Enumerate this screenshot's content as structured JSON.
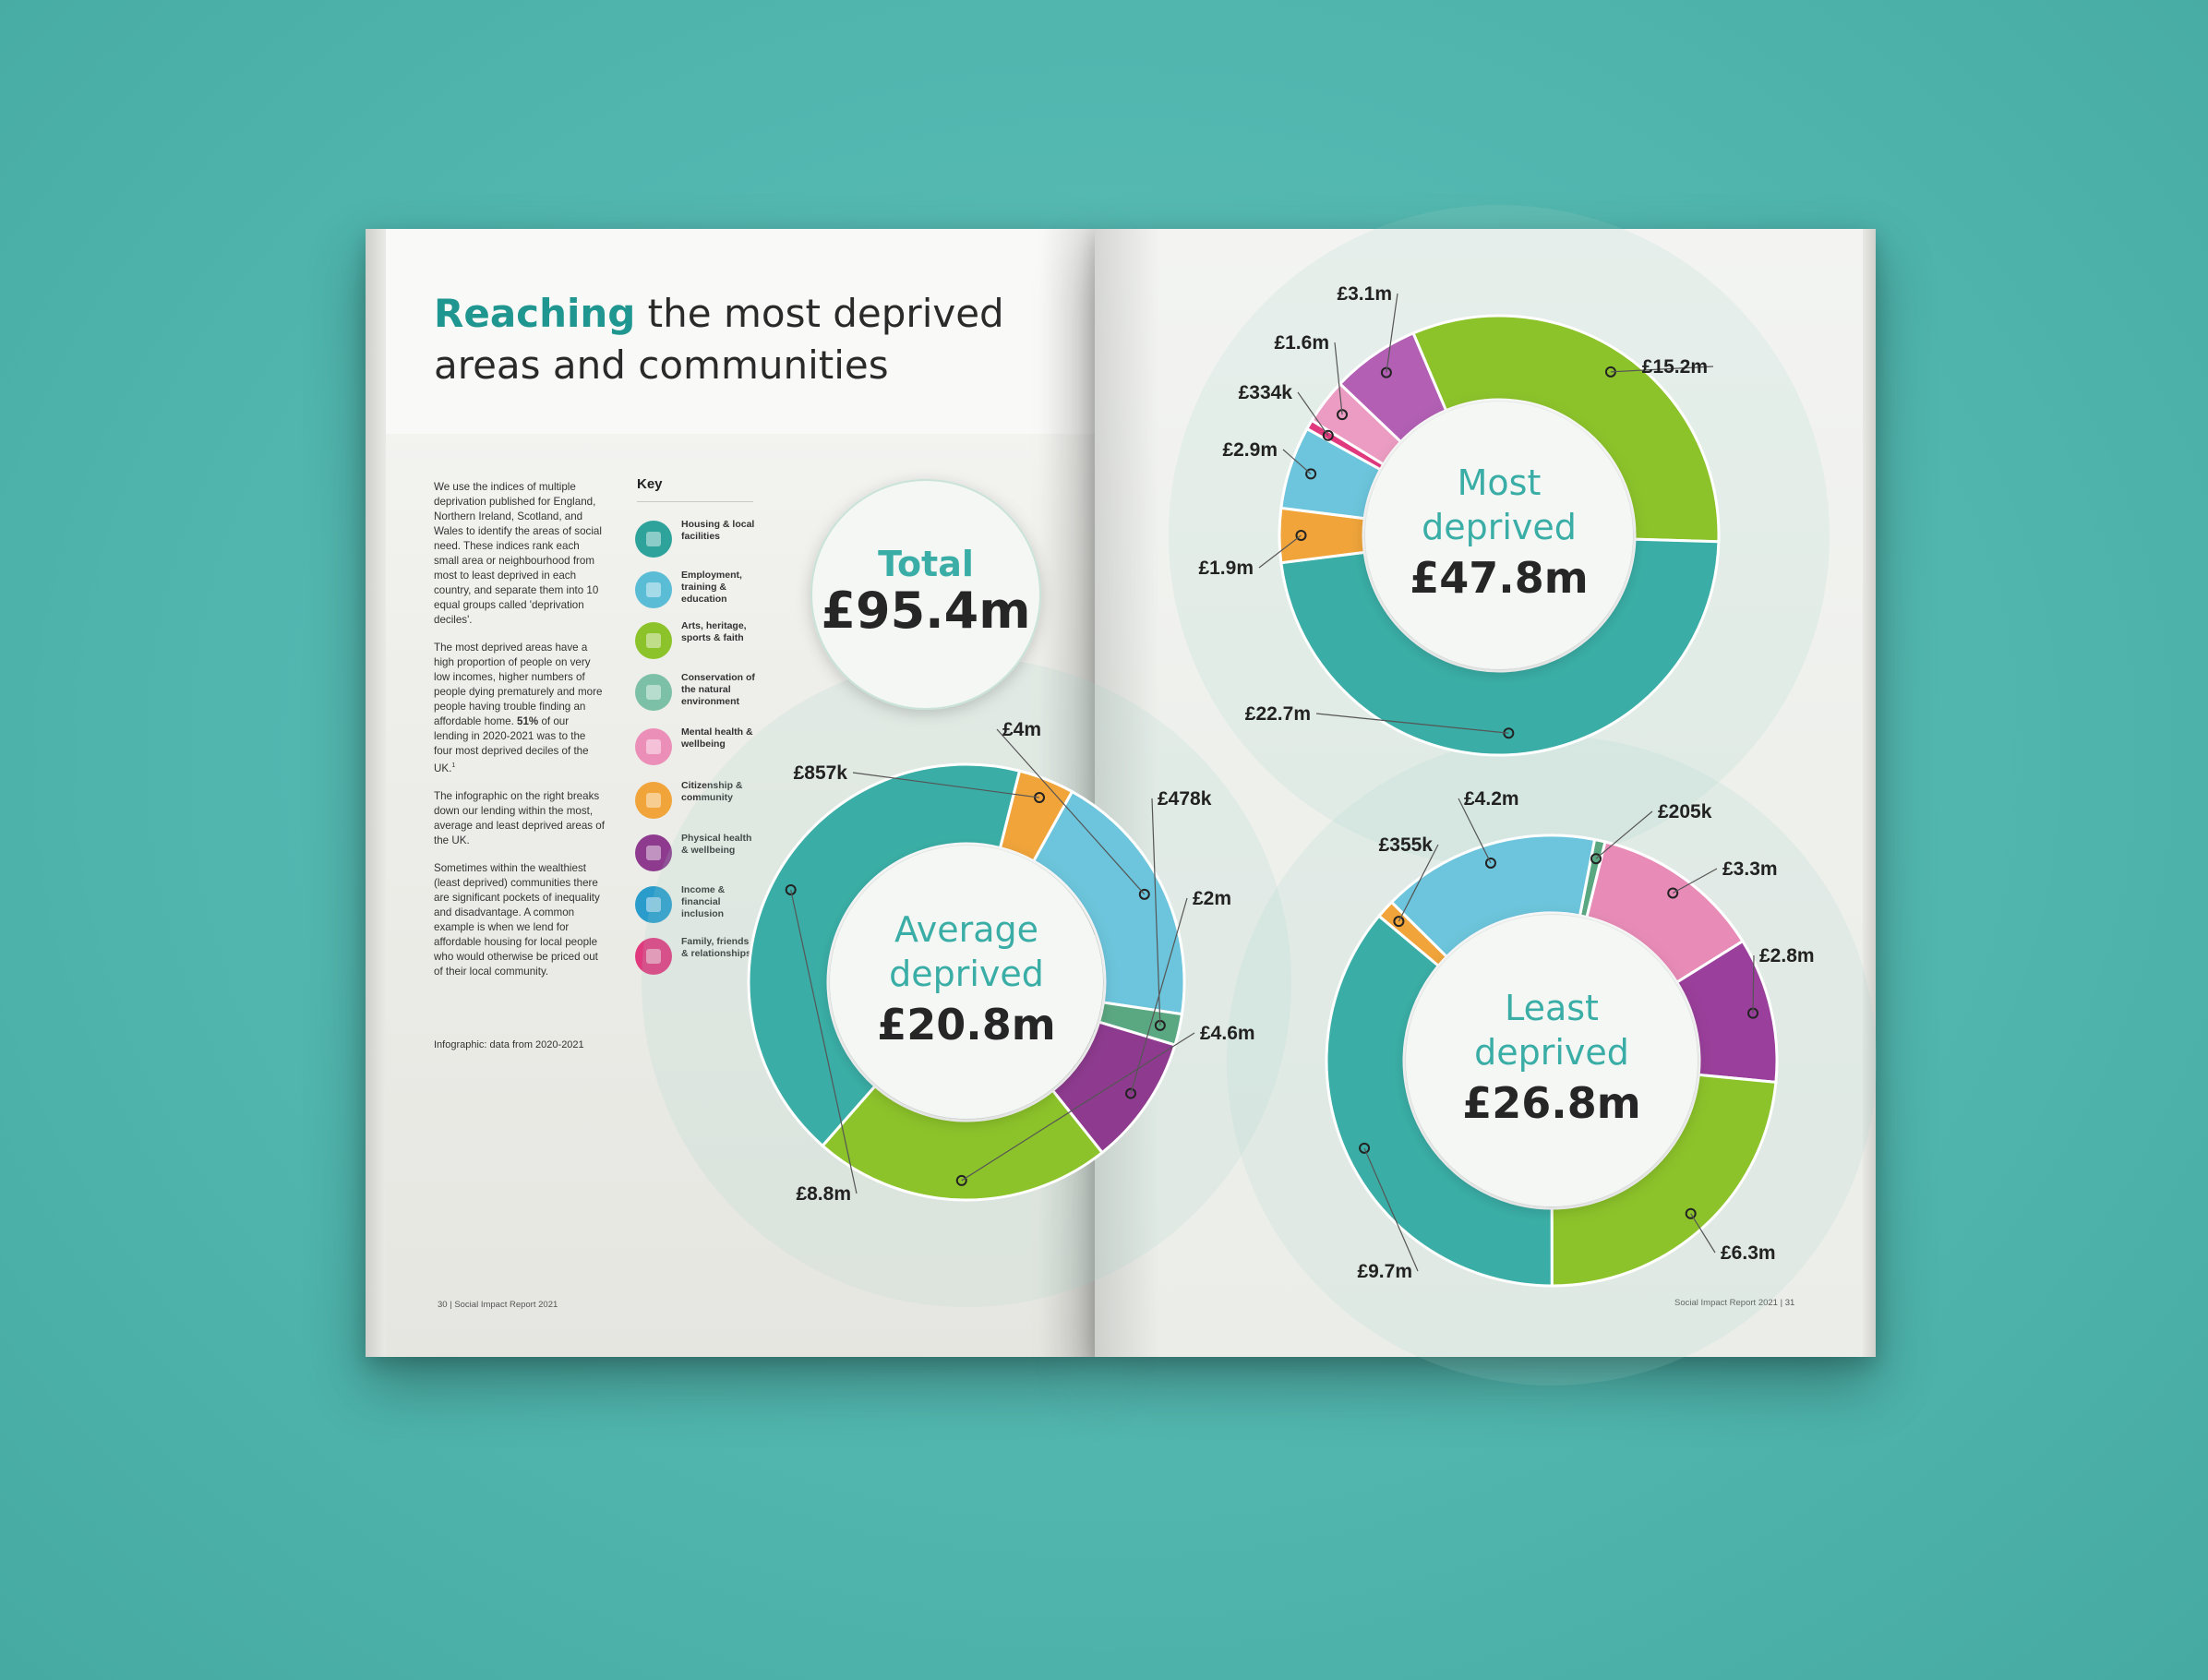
{
  "title": {
    "highlight": "Reaching",
    "rest_line1": " the most deprived",
    "line2": "areas and communities"
  },
  "body": {
    "p1": "We use the indices of multiple deprivation published for England, Northern Ireland, Scotland, and Wales to identify the areas of social need. These indices rank each small area or neighbourhood from most to least deprived in each country, and separate them into 10 equal groups called 'deprivation deciles'.",
    "p2_start": "The most deprived areas have a high proportion of people on very low incomes, higher numbers of people dying prematurely and more people having trouble finding an affordable home. ",
    "p2_bold": "51%",
    "p2_end": " of our lending in 2020-2021 was to the four most deprived deciles of the UK.",
    "p2_sup": "1",
    "p3": "The infographic on the right breaks down our lending within the most, average and least deprived areas of the UK.",
    "p4": "Sometimes within the wealthiest (least deprived) communities there are significant pockets of inequality and disadvantage. A common example is when we lend for affordable housing for local people who would otherwise be priced out of their local community.",
    "footnote": "Infographic: data from 2020-2021"
  },
  "folio": {
    "left": "30 | Social Impact Report 2021",
    "right": "Social Impact Report 2021 | 31"
  },
  "key": {
    "title": "Key",
    "items": [
      {
        "label": "Housing & local facilities",
        "color": "#2ea39b",
        "icon": "house-icon"
      },
      {
        "label": "Employment, training & education",
        "color": "#5bbcd6",
        "icon": "book-icon"
      },
      {
        "label": "Arts, heritage, sports & faith",
        "color": "#8cc32a",
        "icon": "palette-icon"
      },
      {
        "label": "Conservation of the natural environment",
        "color": "#7cc1a7",
        "icon": "leaf-icon"
      },
      {
        "label": "Mental health & wellbeing",
        "color": "#ec8fb8",
        "icon": "heart-icon"
      },
      {
        "label": "Citizenship & community",
        "color": "#f0a43a",
        "icon": "people-icon"
      },
      {
        "label": "Physical health & wellbeing",
        "color": "#8e3b8f",
        "icon": "heartbeat-icon"
      },
      {
        "label": "Income & financial inclusion",
        "color": "#2a9ccc",
        "icon": "coin-hand-icon"
      },
      {
        "label": "Family, friends & relationships",
        "color": "#e0397e",
        "icon": "family-icon"
      }
    ]
  },
  "total": {
    "label": "Total",
    "value": "£95.4m"
  },
  "chart_data": [
    {
      "type": "pie",
      "name_lines": [
        "Most",
        "deprived"
      ],
      "total_label": "£47.8m",
      "slices": [
        {
          "category": "Arts, heritage, sports & faith",
          "value": 15.2,
          "label": "£15.2m",
          "color": "#8cc32a"
        },
        {
          "category": "Housing & local facilities",
          "value": 22.7,
          "label": "£22.7m",
          "color": "#3aaea6"
        },
        {
          "category": "Citizenship & community",
          "value": 1.9,
          "label": "£1.9m",
          "color": "#f0a43a"
        },
        {
          "category": "Employment, training & education",
          "value": 2.9,
          "label": "£2.9m",
          "color": "#6cc5dc"
        },
        {
          "category": "Family, friends & relationships",
          "value": 0.334,
          "label": "£334k",
          "color": "#e0397e"
        },
        {
          "category": "Mental health & wellbeing",
          "value": 1.6,
          "label": "£1.6m",
          "color": "#ec9cc2"
        },
        {
          "category": "Physical health & wellbeing",
          "value": 3.1,
          "label": "£3.1m",
          "color": "#b25fb4"
        }
      ]
    },
    {
      "type": "pie",
      "name_lines": [
        "Average",
        "deprived"
      ],
      "total_label": "£20.8m",
      "slices": [
        {
          "category": "Employment, training & education",
          "value": 4.0,
          "label": "£4m",
          "color": "#6cc5dc"
        },
        {
          "category": "Conservation of the natural environment",
          "value": 0.478,
          "label": "£478k",
          "color": "#5aa882"
        },
        {
          "category": "Physical health & wellbeing",
          "value": 2.0,
          "label": "£2m",
          "color": "#8e3b8f"
        },
        {
          "category": "Arts, heritage, sports & faith",
          "value": 4.6,
          "label": "£4.6m",
          "color": "#8cc32a"
        },
        {
          "category": "Housing & local facilities",
          "value": 8.8,
          "label": "£8.8m",
          "color": "#3aaea6"
        },
        {
          "category": "Citizenship & community",
          "value": 0.857,
          "label": "£857k",
          "color": "#f0a43a"
        }
      ]
    },
    {
      "type": "pie",
      "name_lines": [
        "Least",
        "deprived"
      ],
      "total_label": "£26.8m",
      "slices": [
        {
          "category": "Conservation of the natural environment",
          "value": 0.205,
          "label": "£205k",
          "color": "#5aa882"
        },
        {
          "category": "Mental health & wellbeing",
          "value": 3.3,
          "label": "£3.3m",
          "color": "#e88bb7"
        },
        {
          "category": "Physical health & wellbeing",
          "value": 2.8,
          "label": "£2.8m",
          "color": "#9a3f9b"
        },
        {
          "category": "Arts, heritage, sports & faith",
          "value": 6.3,
          "label": "£6.3m",
          "color": "#8cc32a"
        },
        {
          "category": "Housing & local facilities",
          "value": 9.7,
          "label": "£9.7m",
          "color": "#3aaea6"
        },
        {
          "category": "Citizenship & community",
          "value": 0.355,
          "label": "£355k",
          "color": "#f0a43a"
        },
        {
          "category": "Employment, training & education",
          "value": 4.2,
          "label": "£4.2m",
          "color": "#6cc5dc"
        }
      ]
    }
  ]
}
